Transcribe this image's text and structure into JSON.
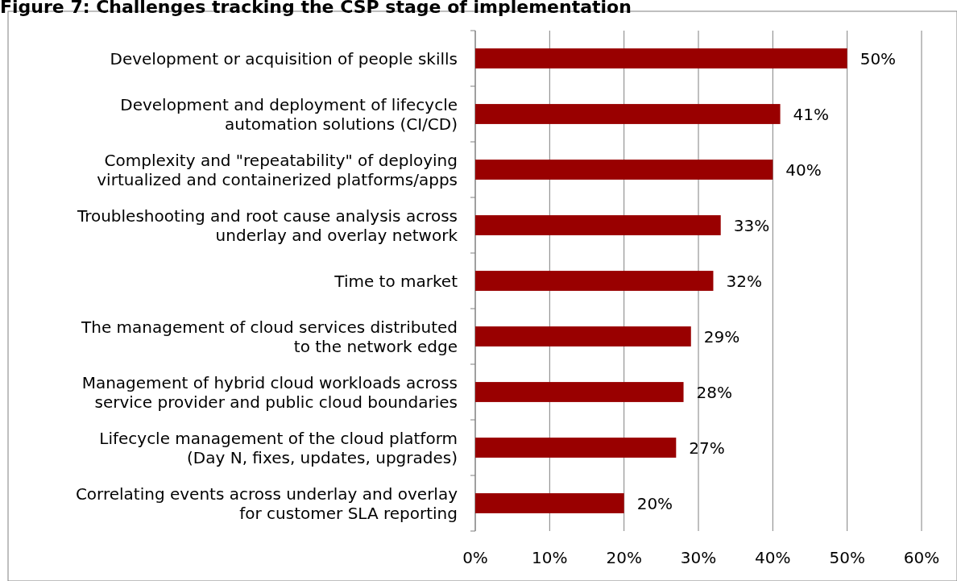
{
  "chart_data": {
    "type": "bar",
    "orientation": "horizontal",
    "title": "Figure 7: Challenges tracking the CSP stage of implementation",
    "categories": [
      "Development or acquisition of people skills",
      "Development and deployment of lifecycle\nautomation solutions (CI/CD)",
      "Complexity and \"repeatability\" of deploying\nvirtualized and containerized platforms/apps",
      "Troubleshooting and root cause analysis across\nunderlay and overlay network",
      "Time to market",
      "The management of cloud services distributed\nto the network edge",
      "Management of hybrid cloud workloads across\nservice provider and public cloud boundaries",
      "Lifecycle management of the cloud platform\n(Day N, fixes, updates, upgrades)",
      "Correlating events across underlay and overlay\nfor customer SLA reporting"
    ],
    "values": [
      50,
      41,
      40,
      33,
      32,
      29,
      28,
      27,
      20
    ],
    "value_labels": [
      "50%",
      "41%",
      "40%",
      "33%",
      "32%",
      "29%",
      "28%",
      "27%",
      "20%"
    ],
    "color": "#990000",
    "xlim": [
      0,
      60
    ],
    "xticks": [
      {
        "value": 0,
        "label": "0%"
      },
      {
        "value": 10,
        "label": "10%"
      },
      {
        "value": 20,
        "label": "20%"
      },
      {
        "value": 30,
        "label": "30%"
      },
      {
        "value": 40,
        "label": "40%"
      },
      {
        "value": 50,
        "label": "50%"
      },
      {
        "value": 60,
        "label": "60%"
      }
    ],
    "grid": "x"
  }
}
